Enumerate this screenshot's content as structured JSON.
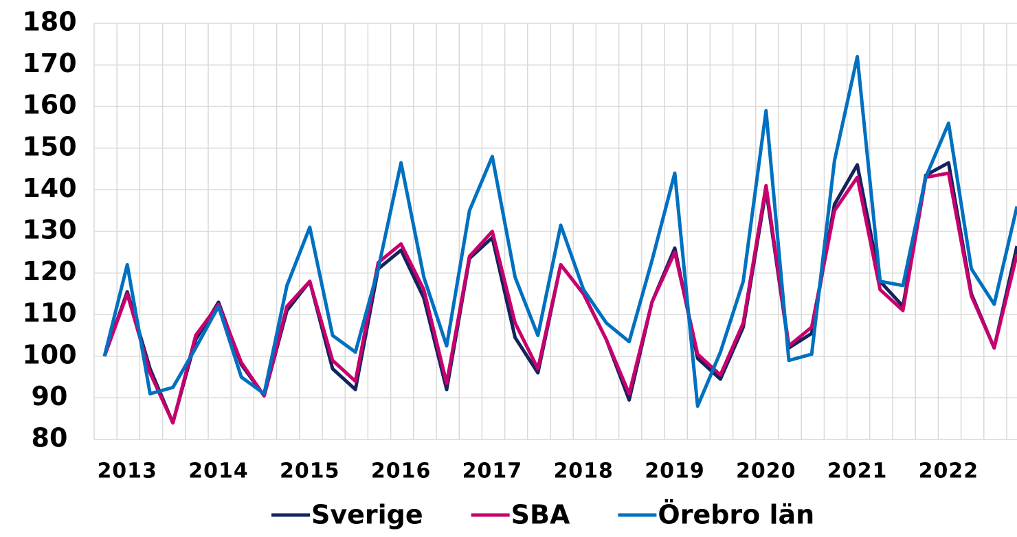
{
  "chart_data": {
    "type": "line",
    "categories": [
      null,
      "2013",
      null,
      null,
      null,
      "2014",
      null,
      null,
      null,
      "2015",
      null,
      null,
      null,
      "2016",
      null,
      null,
      null,
      "2017",
      null,
      null,
      null,
      "2018",
      null,
      null,
      null,
      "2019",
      null,
      null,
      null,
      "2020",
      null,
      null,
      null,
      "2021",
      null,
      null,
      null,
      "2022",
      null,
      null,
      null
    ],
    "series": [
      {
        "name": "Sverige",
        "color": "#14245c",
        "values": [
          100,
          115.5,
          97,
          84,
          104,
          113,
          98,
          90.5,
          111,
          118,
          97,
          92,
          121,
          125.5,
          114,
          92,
          123.5,
          128.5,
          104.5,
          96,
          122,
          115,
          104,
          89.5,
          113,
          126,
          99.5,
          94.5,
          107,
          140,
          102,
          105.5,
          136.5,
          146,
          118,
          112,
          143.5,
          146.5,
          115,
          102,
          126.5
        ]
      },
      {
        "name": "SBA",
        "color": "#c8006e",
        "values": [
          100,
          115,
          96,
          84,
          105,
          112.5,
          98.5,
          90.5,
          112,
          118,
          99,
          94,
          122.5,
          127,
          116,
          93.5,
          124,
          130,
          108,
          97,
          122,
          115,
          104,
          91,
          113,
          125,
          100.5,
          95.5,
          108,
          141,
          102.5,
          107,
          135,
          143,
          116,
          111,
          143,
          144,
          114.5,
          102,
          124.5
        ]
      },
      {
        "name": "Örebro län",
        "color": "#0070c0",
        "values": [
          100,
          122,
          91,
          92.5,
          102,
          112,
          95,
          91,
          117,
          131,
          105,
          101,
          121,
          146.5,
          119,
          102.5,
          135,
          148,
          119,
          105,
          131.5,
          116,
          108,
          103.5,
          123,
          144,
          88,
          101,
          118,
          159,
          99,
          100.5,
          147,
          172,
          118,
          117,
          143,
          156,
          121,
          112.5,
          136
        ]
      }
    ],
    "ylim": [
      80,
      180
    ],
    "yticks": [
      80,
      90,
      100,
      110,
      120,
      130,
      140,
      150,
      160,
      170,
      180
    ],
    "grid": true
  }
}
